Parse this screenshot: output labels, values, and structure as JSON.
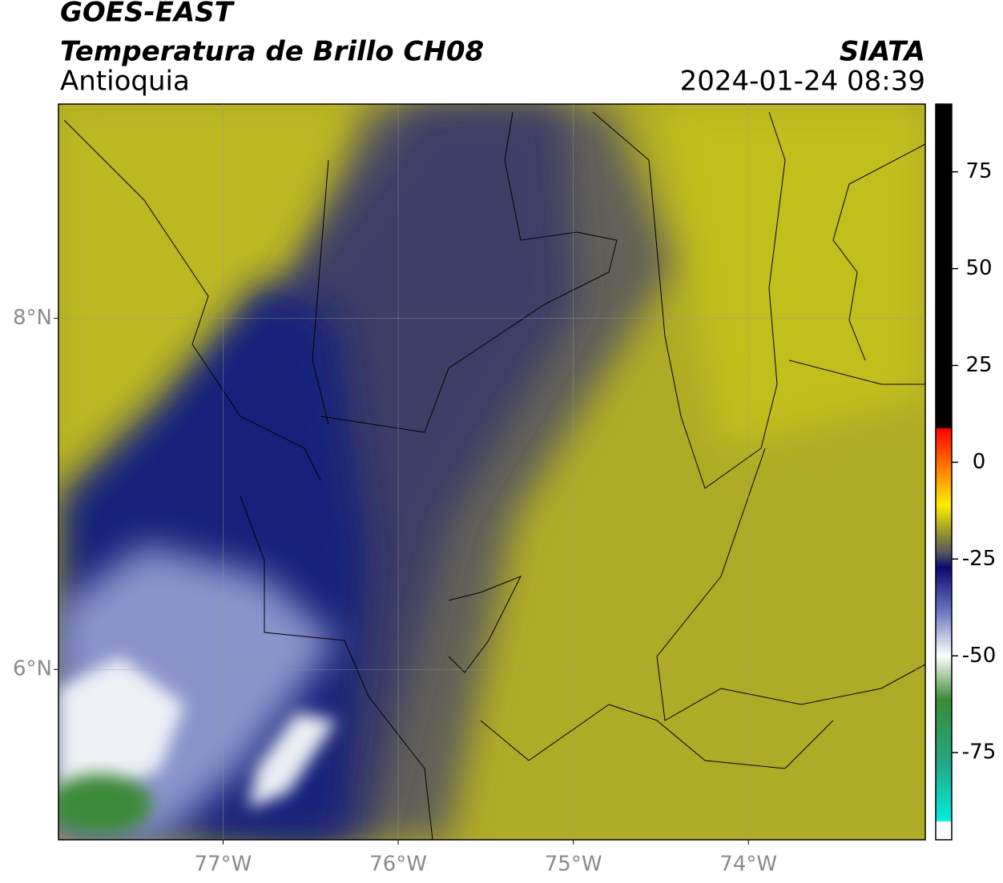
{
  "header": {
    "title": "GOES-EAST",
    "subtitle": "Temperatura de Brillo CH08",
    "region": "Antioquia",
    "source": "SIATA",
    "datetime": "2024-01-24 08:39"
  },
  "map": {
    "xlim": [
      -77.94,
      -72.99
    ],
    "ylim": [
      5.03,
      9.22
    ],
    "xticks": [
      {
        "value": -77,
        "label": "77°W"
      },
      {
        "value": -76,
        "label": "76°W"
      },
      {
        "value": -75,
        "label": "75°W"
      },
      {
        "value": -74,
        "label": "74°W"
      }
    ],
    "yticks": [
      {
        "value": 6,
        "label": "6°N"
      },
      {
        "value": 8,
        "label": "8°N"
      }
    ],
    "grid": true
  },
  "colorbar": {
    "lim": [
      -97.5,
      92.5
    ],
    "ticks": [
      -75,
      -50,
      -25,
      0,
      25,
      50,
      75
    ]
  }
}
